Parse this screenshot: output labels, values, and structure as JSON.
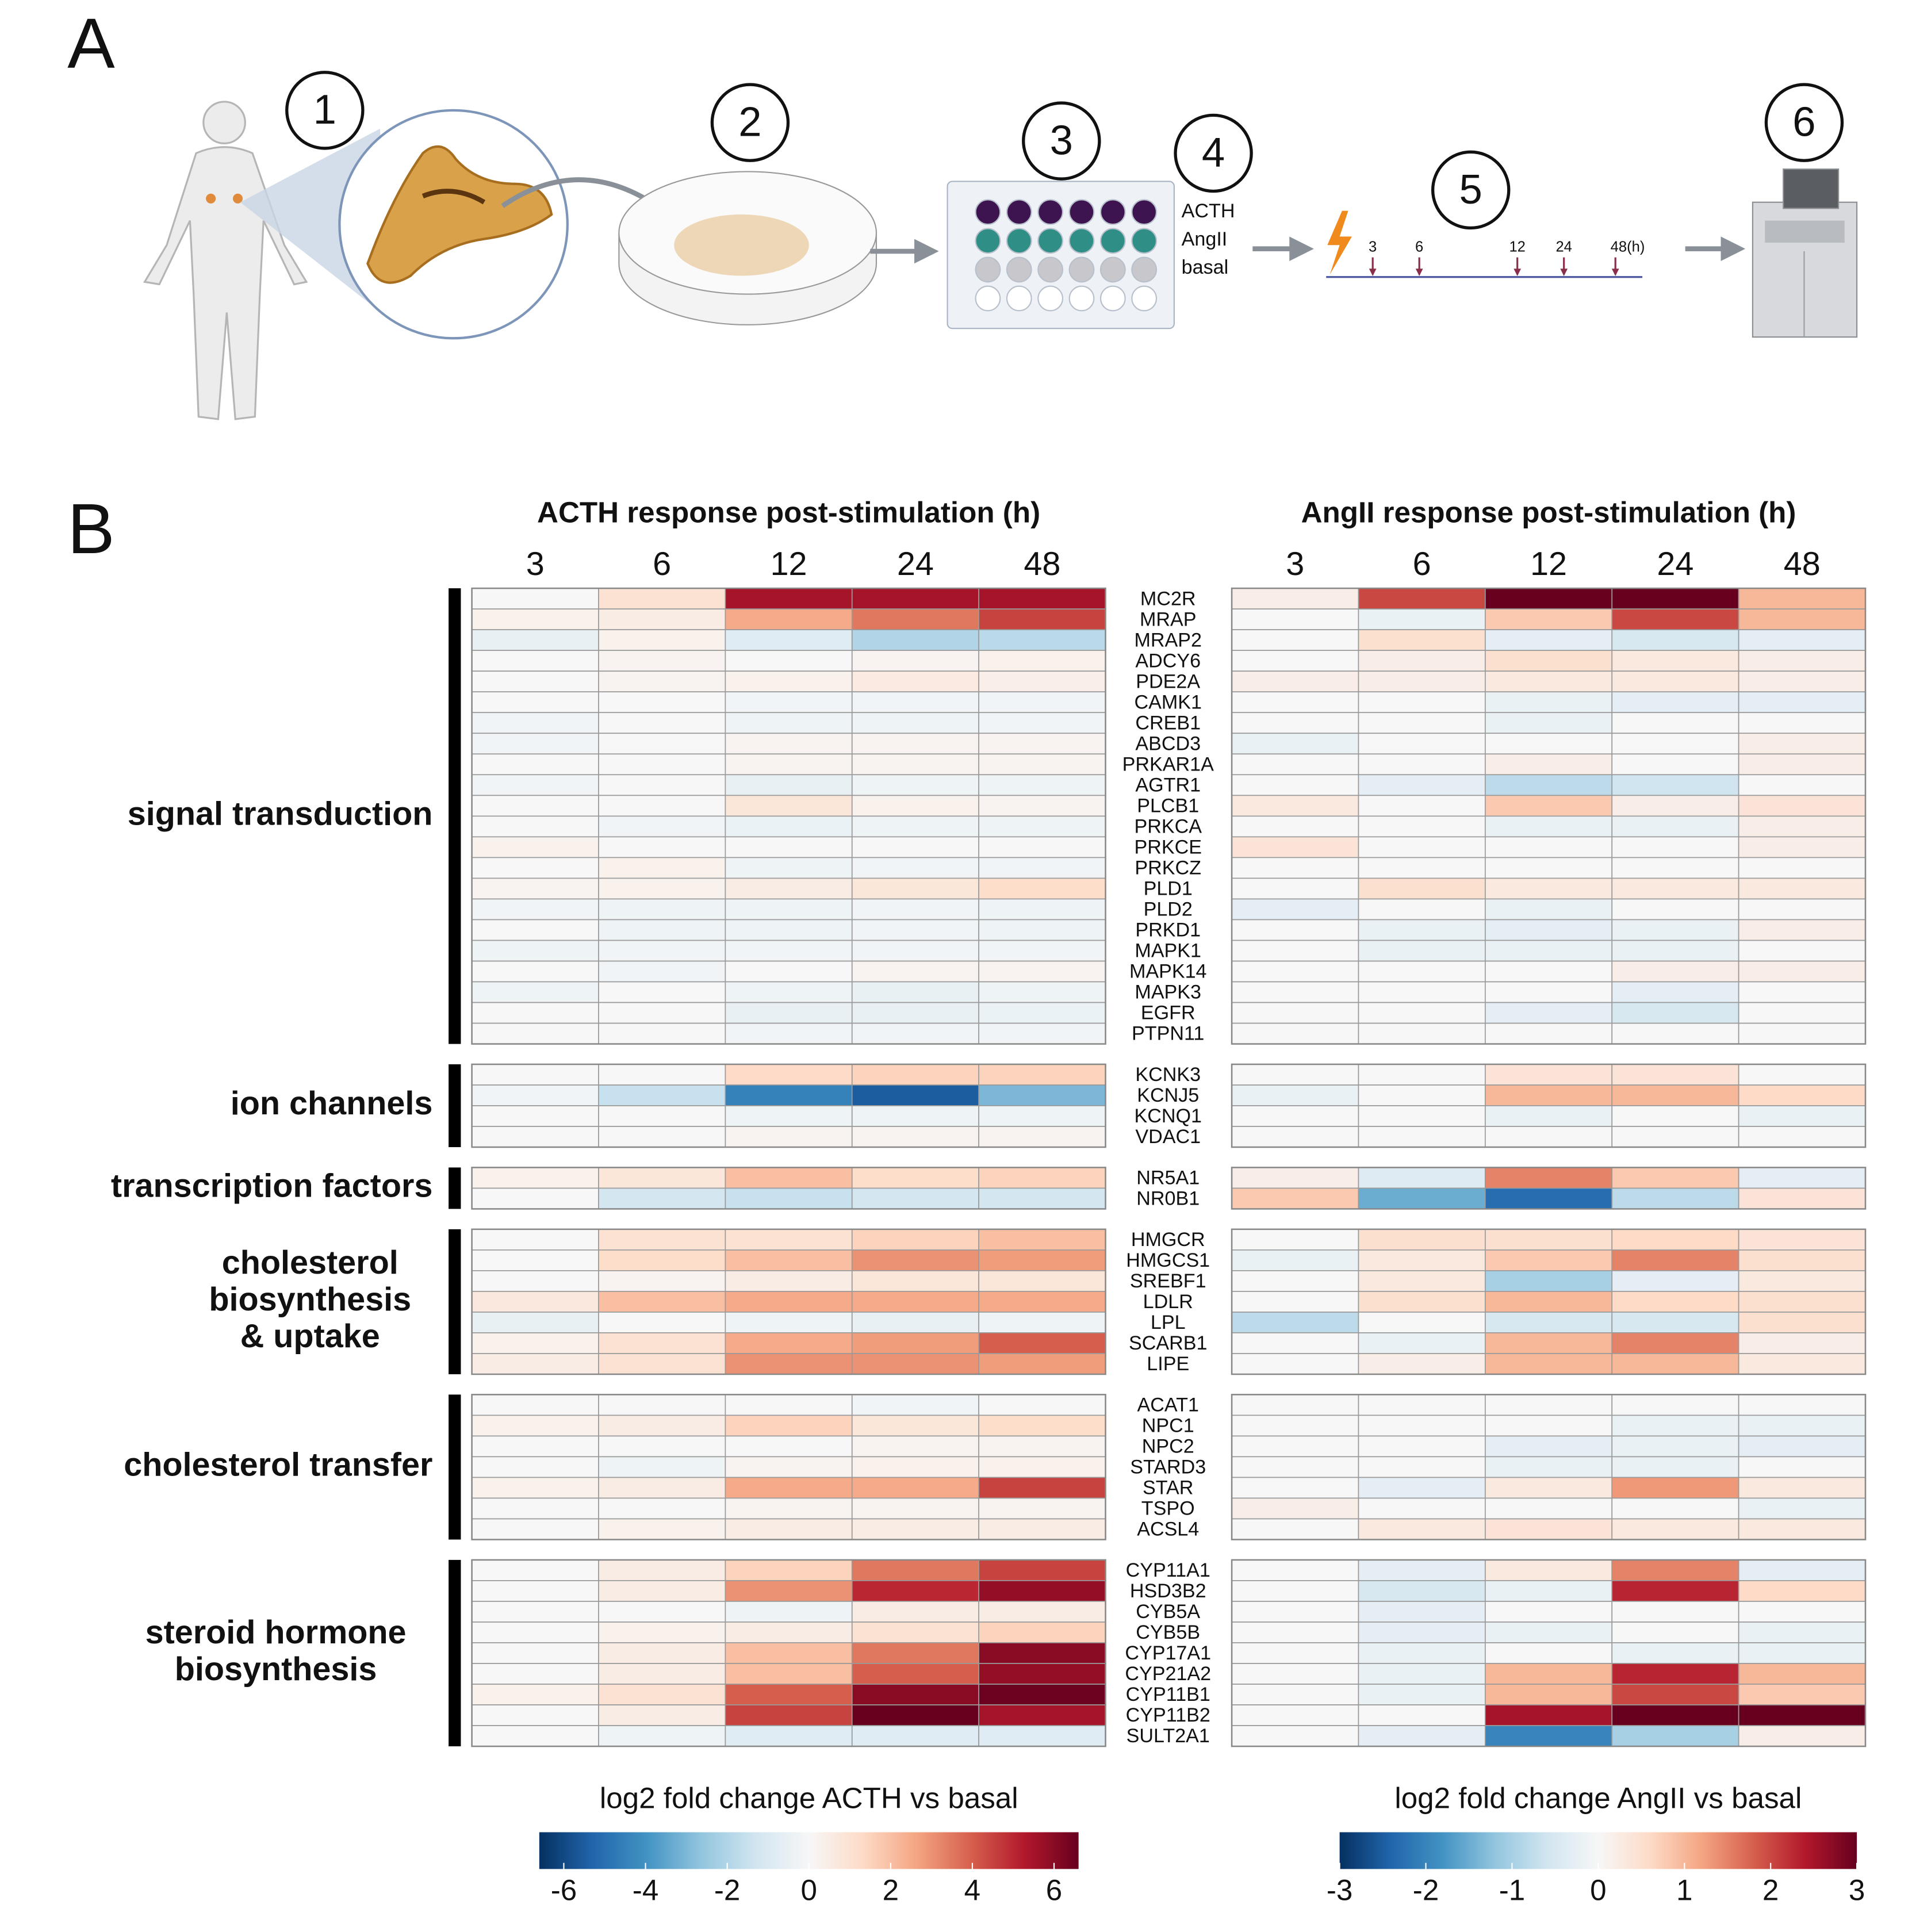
{
  "panel_a": {
    "label": "A",
    "steps": [
      "1",
      "2",
      "3",
      "4",
      "5",
      "6"
    ],
    "treatments": [
      "ACTH",
      "AngII",
      "basal"
    ],
    "timepoints": [
      "3",
      "6",
      "12",
      "24",
      "48(h)"
    ]
  },
  "panel_b_label": "B",
  "gene_groups": [
    {
      "label_lines": [
        "signal transduction"
      ],
      "genes": [
        "MC2R",
        "MRAP",
        "MRAP2",
        "ADCY6",
        "PDE2A",
        "CAMK1",
        "CREB1",
        "ABCD3",
        "PRKAR1A",
        "AGTR1",
        "PLCB1",
        "PRKCA",
        "PRKCE",
        "PRKCZ",
        "PLD1",
        "PLD2",
        "PRKD1",
        "MAPK1",
        "MAPK14",
        "MAPK3",
        "EGFR",
        "PTPN11"
      ]
    },
    {
      "label_lines": [
        "ion channels"
      ],
      "genes": [
        "KCNK3",
        "KCNJ5",
        "KCNQ1",
        "VDAC1"
      ]
    },
    {
      "label_lines": [
        "transcription factors"
      ],
      "genes": [
        "NR5A1",
        "NR0B1"
      ]
    },
    {
      "label_lines": [
        "cholesterol",
        "biosynthesis",
        "& uptake"
      ],
      "genes": [
        "HMGCR",
        "HMGCS1",
        "SREBF1",
        "LDLR",
        "LPL",
        "SCARB1",
        "LIPE"
      ]
    },
    {
      "label_lines": [
        "cholesterol transfer"
      ],
      "genes": [
        "ACAT1",
        "NPC1",
        "NPC2",
        "STARD3",
        "STAR",
        "TSPO",
        "ACSL4"
      ]
    },
    {
      "label_lines": [
        "steroid hormone",
        "biosynthesis"
      ],
      "genes": [
        "CYP11A1",
        "HSD3B2",
        "CYB5A",
        "CYB5B",
        "CYP17A1",
        "CYP21A2",
        "CYP11B1",
        "CYP11B2",
        "SULT2A1"
      ]
    }
  ],
  "chart_data": [
    {
      "type": "heatmap",
      "title": "ACTH response post-stimulation (h)",
      "categories": [
        "3",
        "6",
        "12",
        "24",
        "48"
      ],
      "colors": [
        "#053061",
        "#2166ac",
        "#4393c3",
        "#92c5de",
        "#d1e5f0",
        "#f7f7f7",
        "#fddbc7",
        "#f4a582",
        "#d6604d",
        "#b2182b",
        "#67001f"
      ],
      "colorbar_label": "log2 fold change ACTH vs basal",
      "zlim": [
        -6.6,
        6.6
      ],
      "zticks": [
        -6,
        -4,
        -2,
        0,
        2,
        4,
        6
      ],
      "values": [
        [
          0,
          1,
          5.5,
          5.5,
          5.5
        ],
        [
          0.3,
          0.5,
          2.5,
          3.5,
          4.5
        ],
        [
          -0.5,
          0.3,
          -0.8,
          -2,
          -1.8
        ],
        [
          0,
          0.2,
          0,
          0.2,
          0.3
        ],
        [
          0,
          0.2,
          0.3,
          0.6,
          0.4
        ],
        [
          0,
          0,
          -0.2,
          -0.2,
          -0.2
        ],
        [
          -0.2,
          0,
          -0.3,
          -0.3,
          -0.2
        ],
        [
          -0.2,
          0,
          0.2,
          0.2,
          0.2
        ],
        [
          0,
          0,
          0.2,
          0.2,
          0.2
        ],
        [
          -0.2,
          0,
          -0.5,
          -0.3,
          -0.3
        ],
        [
          0,
          0,
          0.8,
          0.3,
          0.2
        ],
        [
          0,
          -0.2,
          -0.4,
          -0.3,
          -0.3
        ],
        [
          0.3,
          0,
          0,
          0,
          0
        ],
        [
          0,
          0.3,
          -0.3,
          -0.2,
          -0.2
        ],
        [
          0.2,
          0.3,
          0.5,
          0.8,
          1.2
        ],
        [
          -0.2,
          -0.3,
          -0.3,
          -0.2,
          -0.3
        ],
        [
          0,
          -0.3,
          -0.3,
          -0.2,
          -0.3
        ],
        [
          -0.3,
          -0.2,
          -0.2,
          -0.2,
          -0.2
        ],
        [
          0,
          -0.2,
          0,
          0.2,
          0.2
        ],
        [
          -0.3,
          0,
          -0.3,
          -0.5,
          -0.3
        ],
        [
          0,
          0,
          -0.5,
          -0.5,
          -0.4
        ],
        [
          0,
          0,
          -0.2,
          -0.2,
          -0.2
        ],
        [
          0,
          0,
          1.3,
          1.5,
          1.5
        ],
        [
          -0.2,
          -1.5,
          -4.5,
          -5.5,
          -3
        ],
        [
          0,
          0,
          -0.3,
          -0.3,
          -0.3
        ],
        [
          0,
          0,
          0.2,
          0.2,
          0.2
        ],
        [
          0.3,
          0.8,
          2,
          1.2,
          1.5
        ],
        [
          0,
          -1.2,
          -1.5,
          -1.2,
          -1.2
        ],
        [
          0,
          1,
          1,
          1.5,
          2
        ],
        [
          0,
          1.2,
          2,
          3,
          2.8
        ],
        [
          0,
          0.2,
          0.5,
          0.8,
          0.8
        ],
        [
          0.7,
          2,
          2.5,
          2.5,
          2.5
        ],
        [
          -0.5,
          0,
          -0.3,
          -0.5,
          -0.3
        ],
        [
          0.3,
          1,
          2.5,
          2.8,
          4
        ],
        [
          0.5,
          1,
          3,
          3,
          2.8
        ],
        [
          0,
          0,
          0,
          -0.2,
          0
        ],
        [
          0.3,
          0.5,
          1.5,
          0.8,
          1.2
        ],
        [
          0,
          0,
          0,
          0.2,
          0.2
        ],
        [
          0,
          -0.3,
          0.2,
          0.3,
          0.3
        ],
        [
          0.3,
          0.5,
          2.5,
          2.5,
          4.5
        ],
        [
          0,
          0,
          0.2,
          0.2,
          0.2
        ],
        [
          0,
          0.3,
          0.5,
          0.5,
          0.5
        ],
        [
          0,
          0.5,
          1.5,
          3.5,
          4.5
        ],
        [
          0,
          0.5,
          3,
          5,
          5.8
        ],
        [
          0,
          0,
          -0.3,
          0.5,
          0.5
        ],
        [
          0,
          0.3,
          0.5,
          1,
          1.5
        ],
        [
          0,
          0.5,
          2,
          3.5,
          6
        ],
        [
          0,
          0.5,
          2,
          4,
          5.8
        ],
        [
          0.3,
          1,
          4,
          6,
          6.5
        ],
        [
          0,
          0.5,
          4.5,
          6.6,
          5.5
        ],
        [
          0,
          -0.3,
          -0.8,
          -0.8,
          -0.8
        ]
      ]
    },
    {
      "type": "heatmap",
      "title": "AngII response post-stimulation (h)",
      "categories": [
        "3",
        "6",
        "12",
        "24",
        "48"
      ],
      "colors": [
        "#053061",
        "#2166ac",
        "#4393c3",
        "#92c5de",
        "#d1e5f0",
        "#f7f7f7",
        "#fddbc7",
        "#f4a582",
        "#d6604d",
        "#b2182b",
        "#67001f"
      ],
      "colorbar_label": "log2 fold change AngII vs basal",
      "zlim": [
        -3,
        3
      ],
      "zticks": [
        -3,
        -2,
        -1,
        0,
        1,
        2,
        3
      ],
      "values": [
        [
          0.2,
          2,
          3,
          3,
          1
        ],
        [
          0,
          -0.2,
          0.8,
          2,
          1
        ],
        [
          0,
          0.5,
          -0.3,
          -0.5,
          -0.3
        ],
        [
          0,
          0.2,
          0.5,
          0.3,
          0.2
        ],
        [
          0.2,
          0.2,
          0.3,
          0.3,
          0.2
        ],
        [
          0,
          0,
          -0.2,
          -0.3,
          -0.3
        ],
        [
          0,
          0,
          -0.2,
          0,
          0
        ],
        [
          -0.2,
          0,
          0,
          0,
          0.2
        ],
        [
          0,
          0,
          0.2,
          0,
          0.2
        ],
        [
          0,
          -0.3,
          -0.8,
          -0.6,
          0
        ],
        [
          0.3,
          0,
          0.8,
          0.2,
          0.4
        ],
        [
          0,
          0,
          -0.2,
          -0.2,
          0.2
        ],
        [
          0.4,
          0,
          0,
          0,
          0.2
        ],
        [
          0,
          0,
          0,
          0,
          0
        ],
        [
          0,
          0.5,
          0.3,
          0.3,
          0.3
        ],
        [
          -0.3,
          0,
          -0.2,
          0,
          0
        ],
        [
          0,
          -0.2,
          -0.3,
          -0.2,
          0.2
        ],
        [
          0,
          -0.2,
          -0.2,
          -0.2,
          0
        ],
        [
          0,
          0,
          0,
          0.2,
          0.2
        ],
        [
          0,
          0,
          0,
          -0.3,
          0
        ],
        [
          0,
          0,
          -0.3,
          -0.5,
          0
        ],
        [
          0,
          0,
          0,
          0,
          0
        ],
        [
          0,
          0,
          0.4,
          0.4,
          0
        ],
        [
          -0.2,
          0,
          1,
          1,
          0.6
        ],
        [
          0,
          0,
          -0.2,
          0,
          -0.2
        ],
        [
          0,
          0,
          0,
          0,
          0
        ],
        [
          0.2,
          -0.4,
          1.5,
          0.8,
          -0.3
        ],
        [
          0.8,
          -1.5,
          -2.3,
          -0.8,
          0.4
        ],
        [
          0,
          0.5,
          0.5,
          0.6,
          0.4
        ],
        [
          -0.2,
          0.3,
          0.8,
          1.5,
          0.5
        ],
        [
          0,
          0.3,
          -1,
          -0.3,
          0.3
        ],
        [
          0,
          0.5,
          1,
          0.6,
          0.5
        ],
        [
          -0.8,
          0,
          -0.5,
          -0.5,
          0.5
        ],
        [
          0,
          -0.2,
          1,
          1.5,
          0.2
        ],
        [
          0,
          0.2,
          1,
          1,
          0.3
        ],
        [
          0,
          0,
          0,
          0,
          0
        ],
        [
          0,
          0,
          0,
          -0.2,
          -0.2
        ],
        [
          0,
          0,
          -0.3,
          -0.2,
          -0.3
        ],
        [
          0,
          0,
          -0.2,
          -0.2,
          0
        ],
        [
          0,
          -0.3,
          0.3,
          1.3,
          0.3
        ],
        [
          0.2,
          0,
          0,
          0,
          -0.2
        ],
        [
          0,
          0.3,
          0.4,
          0.3,
          0.3
        ],
        [
          0,
          -0.3,
          0.3,
          1.5,
          -0.3
        ],
        [
          0,
          -0.5,
          -0.2,
          2.3,
          0.6
        ],
        [
          0,
          -0.3,
          0,
          0,
          0
        ],
        [
          0,
          -0.3,
          -0.2,
          0,
          -0.2
        ],
        [
          0,
          -0.2,
          0,
          -0.2,
          -0.2
        ],
        [
          0,
          -0.2,
          1,
          2.3,
          1
        ],
        [
          0,
          -0.2,
          1,
          2,
          0.8
        ],
        [
          0,
          0,
          2.5,
          3,
          3
        ],
        [
          0,
          -0.3,
          -2,
          -1,
          0.2
        ]
      ]
    }
  ]
}
